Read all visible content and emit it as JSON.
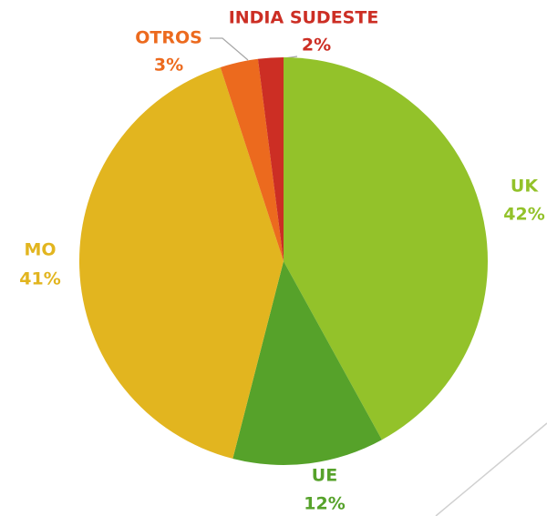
{
  "chart_data": {
    "type": "pie",
    "categories": [
      "UK",
      "UE",
      "MO",
      "OTROS",
      "INDIA SUDESTE"
    ],
    "values": [
      42,
      12,
      41,
      3,
      2
    ],
    "value_labels": [
      "42%",
      "12%",
      "41%",
      "3%",
      "2%"
    ],
    "colors": [
      "#93c22a",
      "#56a22a",
      "#e2b51f",
      "#ec6a1e",
      "#cc2e24"
    ]
  }
}
